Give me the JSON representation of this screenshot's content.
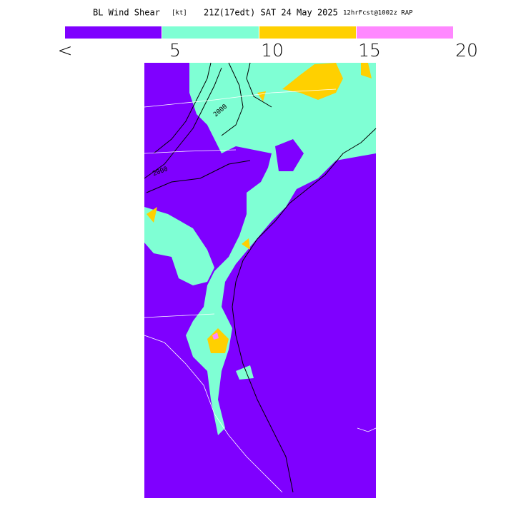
{
  "header": {
    "title_parts": [
      "BL Wind Shear",
      "[kt]",
      "21Z(17edt) SAT 24 May 2025",
      "12hrFcst@1002z RAP"
    ]
  },
  "colorbar": {
    "colors": [
      "#7f00ff",
      "#7fffd4",
      "#ffd000",
      "#ff88ff"
    ],
    "labels": [
      "<",
      5,
      10,
      15,
      20
    ]
  },
  "map": {
    "contour_labels": [
      "2000",
      "2000"
    ]
  }
}
